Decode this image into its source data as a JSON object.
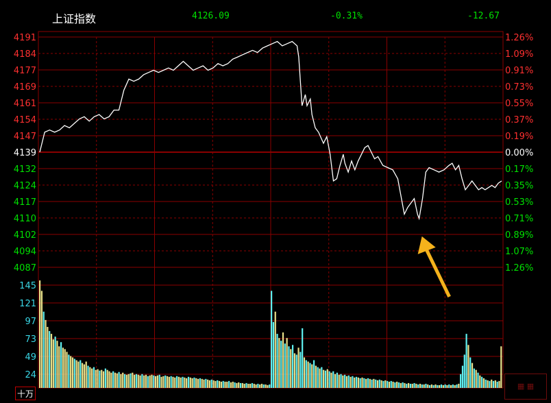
{
  "header": {
    "name": "上证指数",
    "price": "4126.09",
    "pct": "-0.31%",
    "change": "-12.67"
  },
  "volume_unit": "十万",
  "colors": {
    "up": "#ff3030",
    "down": "#00e000",
    "grid": "#8b0000",
    "line": "#ffffff",
    "vol_up": "#e8e08a",
    "vol_down": "#5ff0f0",
    "arrow": "#f5b21c"
  },
  "chart_data": {
    "type": "line",
    "title": "",
    "xlabel": "",
    "ylabel": "",
    "previous_close": 4139,
    "price_ticks": [
      4191,
      4184,
      4177,
      4169,
      4161,
      4154,
      4147,
      4139,
      4132,
      4124,
      4117,
      4110,
      4102,
      4094,
      4087
    ],
    "pct_ticks": [
      "1.26%",
      "1.09%",
      "0.91%",
      "0.73%",
      "0.55%",
      "0.37%",
      "0.19%",
      "0.00%",
      "0.17%",
      "0.35%",
      "0.53%",
      "0.71%",
      "0.89%",
      "1.07%",
      "1.26%"
    ],
    "volume_ticks": [
      145,
      121,
      97,
      73,
      49,
      24
    ],
    "ylim": [
      4087,
      4191
    ],
    "volume_ylim": [
      0,
      170
    ],
    "minutes": 240,
    "price_series": [
      [
        0,
        4139
      ],
      [
        3,
        4148
      ],
      [
        6,
        4149
      ],
      [
        9,
        4148
      ],
      [
        12,
        4149
      ],
      [
        15,
        4151
      ],
      [
        18,
        4150
      ],
      [
        21,
        4152
      ],
      [
        24,
        4154
      ],
      [
        27,
        4155
      ],
      [
        30,
        4153
      ],
      [
        33,
        4155
      ],
      [
        36,
        4156
      ],
      [
        39,
        4154
      ],
      [
        42,
        4155
      ],
      [
        45,
        4158
      ],
      [
        48,
        4158
      ],
      [
        51,
        4167
      ],
      [
        54,
        4172
      ],
      [
        57,
        4171
      ],
      [
        60,
        4172
      ],
      [
        63,
        4174
      ],
      [
        66,
        4175
      ],
      [
        69,
        4176
      ],
      [
        72,
        4175
      ],
      [
        75,
        4176
      ],
      [
        78,
        4177
      ],
      [
        81,
        4176
      ],
      [
        84,
        4178
      ],
      [
        87,
        4180
      ],
      [
        90,
        4178
      ],
      [
        93,
        4176
      ],
      [
        96,
        4177
      ],
      [
        99,
        4178
      ],
      [
        102,
        4176
      ],
      [
        105,
        4177
      ],
      [
        108,
        4179
      ],
      [
        111,
        4178
      ],
      [
        114,
        4179
      ],
      [
        117,
        4181
      ],
      [
        120,
        4182
      ],
      [
        123,
        4183
      ],
      [
        126,
        4184
      ],
      [
        129,
        4185
      ],
      [
        132,
        4184
      ],
      [
        135,
        4186
      ],
      [
        138,
        4187
      ],
      [
        141,
        4188
      ],
      [
        144,
        4189
      ],
      [
        147,
        4187
      ],
      [
        150,
        4188
      ],
      [
        153,
        4189
      ],
      [
        156,
        4187
      ],
      [
        157,
        4182
      ],
      [
        159,
        4160
      ],
      [
        161,
        4165
      ],
      [
        162,
        4160
      ],
      [
        164,
        4163
      ],
      [
        165,
        4156
      ],
      [
        167,
        4150
      ],
      [
        169,
        4148
      ],
      [
        172,
        4143
      ],
      [
        174,
        4146
      ],
      [
        176,
        4138
      ],
      [
        178,
        4126
      ],
      [
        180,
        4127
      ],
      [
        182,
        4133
      ],
      [
        184,
        4138
      ],
      [
        185,
        4134
      ],
      [
        187,
        4130
      ],
      [
        189,
        4135
      ],
      [
        191,
        4131
      ],
      [
        193,
        4135
      ],
      [
        195,
        4138
      ],
      [
        197,
        4141
      ],
      [
        199,
        4142
      ],
      [
        201,
        4139
      ],
      [
        203,
        4136
      ],
      [
        205,
        4137
      ],
      [
        208,
        4133
      ],
      [
        211,
        4132
      ],
      [
        214,
        4131
      ],
      [
        217,
        4127
      ],
      [
        219,
        4119
      ],
      [
        221,
        4111
      ],
      [
        223,
        4114
      ],
      [
        225,
        4116
      ],
      [
        227,
        4118
      ],
      [
        229,
        4111
      ],
      [
        230,
        4109
      ],
      [
        232,
        4118
      ],
      [
        234,
        4130
      ],
      [
        236,
        4132
      ],
      [
        239,
        4131
      ],
      [
        242,
        4130
      ],
      [
        245,
        4131
      ],
      [
        248,
        4133
      ],
      [
        250,
        4134
      ],
      [
        252,
        4131
      ],
      [
        254,
        4133
      ],
      [
        256,
        4127
      ],
      [
        258,
        4122
      ],
      [
        260,
        4124
      ],
      [
        262,
        4126
      ],
      [
        264,
        4124
      ],
      [
        266,
        4122
      ],
      [
        268,
        4123
      ],
      [
        270,
        4122
      ],
      [
        272,
        4123
      ],
      [
        274,
        4124
      ],
      [
        276,
        4123
      ],
      [
        278,
        4125
      ],
      [
        280,
        4126
      ]
    ],
    "volume_series": [
      [
        0,
        155,
        "up"
      ],
      [
        1,
        140,
        "up"
      ],
      [
        2,
        110,
        "down"
      ],
      [
        3,
        98,
        "up"
      ],
      [
        4,
        88,
        "up"
      ],
      [
        5,
        82,
        "down"
      ],
      [
        6,
        78,
        "up"
      ],
      [
        7,
        70,
        "up"
      ],
      [
        8,
        74,
        "down"
      ],
      [
        9,
        68,
        "up"
      ],
      [
        10,
        60,
        "up"
      ],
      [
        11,
        66,
        "down"
      ],
      [
        12,
        58,
        "up"
      ],
      [
        13,
        56,
        "up"
      ],
      [
        14,
        52,
        "up"
      ],
      [
        15,
        48,
        "down"
      ],
      [
        16,
        46,
        "up"
      ],
      [
        17,
        44,
        "up"
      ],
      [
        18,
        42,
        "down"
      ],
      [
        19,
        40,
        "up"
      ],
      [
        20,
        38,
        "up"
      ],
      [
        21,
        40,
        "down"
      ],
      [
        22,
        36,
        "up"
      ],
      [
        23,
        34,
        "up"
      ],
      [
        24,
        38,
        "up"
      ],
      [
        25,
        32,
        "down"
      ],
      [
        26,
        30,
        "up"
      ],
      [
        27,
        28,
        "up"
      ],
      [
        28,
        30,
        "down"
      ],
      [
        29,
        26,
        "up"
      ],
      [
        30,
        27,
        "up"
      ],
      [
        31,
        25,
        "down"
      ],
      [
        32,
        26,
        "up"
      ],
      [
        33,
        24,
        "up"
      ],
      [
        34,
        28,
        "down"
      ],
      [
        35,
        26,
        "up"
      ],
      [
        36,
        24,
        "up"
      ],
      [
        37,
        22,
        "up"
      ],
      [
        38,
        24,
        "down"
      ],
      [
        39,
        22,
        "up"
      ],
      [
        40,
        21,
        "up"
      ],
      [
        41,
        23,
        "down"
      ],
      [
        42,
        20,
        "up"
      ],
      [
        43,
        22,
        "up"
      ],
      [
        44,
        20,
        "down"
      ],
      [
        45,
        19,
        "up"
      ],
      [
        46,
        20,
        "up"
      ],
      [
        47,
        21,
        "down"
      ],
      [
        48,
        22,
        "up"
      ],
      [
        49,
        19,
        "up"
      ],
      [
        50,
        20,
        "down"
      ],
      [
        51,
        19,
        "up"
      ],
      [
        52,
        18,
        "up"
      ],
      [
        53,
        20,
        "down"
      ],
      [
        54,
        18,
        "up"
      ],
      [
        55,
        19,
        "up"
      ],
      [
        56,
        17,
        "down"
      ],
      [
        57,
        18,
        "up"
      ],
      [
        58,
        19,
        "up"
      ],
      [
        59,
        18,
        "down"
      ],
      [
        60,
        17,
        "up"
      ],
      [
        61,
        18,
        "up"
      ],
      [
        62,
        19,
        "down"
      ],
      [
        63,
        16,
        "up"
      ],
      [
        64,
        17,
        "up"
      ],
      [
        65,
        18,
        "down"
      ],
      [
        66,
        17,
        "up"
      ],
      [
        67,
        16,
        "up"
      ],
      [
        68,
        17,
        "down"
      ],
      [
        69,
        16,
        "up"
      ],
      [
        70,
        15,
        "up"
      ],
      [
        71,
        17,
        "down"
      ],
      [
        72,
        16,
        "up"
      ],
      [
        73,
        15,
        "up"
      ],
      [
        74,
        16,
        "down"
      ],
      [
        75,
        15,
        "up"
      ],
      [
        76,
        14,
        "up"
      ],
      [
        77,
        16,
        "down"
      ],
      [
        78,
        15,
        "up"
      ],
      [
        79,
        14,
        "up"
      ],
      [
        80,
        15,
        "down"
      ],
      [
        81,
        14,
        "up"
      ],
      [
        82,
        13,
        "up"
      ],
      [
        83,
        14,
        "down"
      ],
      [
        84,
        13,
        "up"
      ],
      [
        85,
        12,
        "up"
      ],
      [
        86,
        13,
        "down"
      ],
      [
        87,
        12,
        "up"
      ],
      [
        88,
        11,
        "up"
      ],
      [
        89,
        12,
        "down"
      ],
      [
        90,
        11,
        "up"
      ],
      [
        91,
        10,
        "up"
      ],
      [
        92,
        11,
        "down"
      ],
      [
        93,
        10,
        "up"
      ],
      [
        94,
        9,
        "up"
      ],
      [
        95,
        10,
        "down"
      ],
      [
        96,
        9,
        "up"
      ],
      [
        97,
        9,
        "up"
      ],
      [
        98,
        10,
        "down"
      ],
      [
        99,
        8,
        "up"
      ],
      [
        100,
        9,
        "up"
      ],
      [
        101,
        8,
        "down"
      ],
      [
        102,
        7,
        "up"
      ],
      [
        103,
        8,
        "up"
      ],
      [
        104,
        7,
        "down"
      ],
      [
        105,
        7,
        "up"
      ],
      [
        106,
        6,
        "up"
      ],
      [
        107,
        7,
        "down"
      ],
      [
        108,
        6,
        "up"
      ],
      [
        109,
        6,
        "up"
      ],
      [
        110,
        7,
        "down"
      ],
      [
        111,
        6,
        "up"
      ],
      [
        112,
        5,
        "up"
      ],
      [
        113,
        6,
        "down"
      ],
      [
        114,
        5,
        "up"
      ],
      [
        115,
        6,
        "up"
      ],
      [
        116,
        5,
        "down"
      ],
      [
        117,
        5,
        "up"
      ],
      [
        118,
        4,
        "up"
      ],
      [
        119,
        5,
        "down"
      ],
      [
        120,
        140,
        "down"
      ],
      [
        121,
        95,
        "down"
      ],
      [
        122,
        110,
        "up"
      ],
      [
        123,
        78,
        "down"
      ],
      [
        124,
        72,
        "up"
      ],
      [
        125,
        68,
        "down"
      ],
      [
        126,
        80,
        "up"
      ],
      [
        127,
        64,
        "down"
      ],
      [
        128,
        72,
        "up"
      ],
      [
        129,
        60,
        "down"
      ],
      [
        130,
        56,
        "up"
      ],
      [
        131,
        62,
        "down"
      ],
      [
        132,
        50,
        "up"
      ],
      [
        133,
        48,
        "down"
      ],
      [
        134,
        58,
        "up"
      ],
      [
        135,
        52,
        "down"
      ],
      [
        136,
        86,
        "down"
      ],
      [
        137,
        44,
        "up"
      ],
      [
        138,
        40,
        "down"
      ],
      [
        139,
        38,
        "up"
      ],
      [
        140,
        36,
        "down"
      ],
      [
        141,
        34,
        "up"
      ],
      [
        142,
        40,
        "down"
      ],
      [
        143,
        32,
        "up"
      ],
      [
        144,
        30,
        "down"
      ],
      [
        145,
        28,
        "up"
      ],
      [
        146,
        30,
        "down"
      ],
      [
        147,
        26,
        "up"
      ],
      [
        148,
        25,
        "down"
      ],
      [
        149,
        27,
        "up"
      ],
      [
        150,
        24,
        "down"
      ],
      [
        151,
        22,
        "up"
      ],
      [
        152,
        24,
        "down"
      ],
      [
        153,
        20,
        "up"
      ],
      [
        154,
        22,
        "down"
      ],
      [
        155,
        19,
        "up"
      ],
      [
        156,
        20,
        "down"
      ],
      [
        157,
        18,
        "up"
      ],
      [
        158,
        19,
        "down"
      ],
      [
        159,
        17,
        "up"
      ],
      [
        160,
        18,
        "down"
      ],
      [
        161,
        16,
        "up"
      ],
      [
        162,
        17,
        "down"
      ],
      [
        163,
        15,
        "up"
      ],
      [
        164,
        16,
        "down"
      ],
      [
        165,
        15,
        "up"
      ],
      [
        166,
        14,
        "down"
      ],
      [
        167,
        15,
        "up"
      ],
      [
        168,
        14,
        "down"
      ],
      [
        169,
        13,
        "up"
      ],
      [
        170,
        14,
        "down"
      ],
      [
        171,
        13,
        "up"
      ],
      [
        172,
        12,
        "down"
      ],
      [
        173,
        13,
        "up"
      ],
      [
        174,
        12,
        "down"
      ],
      [
        175,
        11,
        "up"
      ],
      [
        176,
        12,
        "down"
      ],
      [
        177,
        11,
        "up"
      ],
      [
        178,
        10,
        "down"
      ],
      [
        179,
        11,
        "up"
      ],
      [
        180,
        10,
        "down"
      ],
      [
        181,
        9,
        "up"
      ],
      [
        182,
        10,
        "down"
      ],
      [
        183,
        9,
        "up"
      ],
      [
        184,
        8,
        "down"
      ],
      [
        185,
        9,
        "up"
      ],
      [
        186,
        8,
        "down"
      ],
      [
        187,
        7,
        "up"
      ],
      [
        188,
        8,
        "down"
      ],
      [
        189,
        7,
        "up"
      ],
      [
        190,
        6,
        "down"
      ],
      [
        191,
        7,
        "up"
      ],
      [
        192,
        6,
        "down"
      ],
      [
        193,
        6,
        "up"
      ],
      [
        194,
        7,
        "down"
      ],
      [
        195,
        6,
        "up"
      ],
      [
        196,
        5,
        "down"
      ],
      [
        197,
        6,
        "up"
      ],
      [
        198,
        5,
        "down"
      ],
      [
        199,
        5,
        "up"
      ],
      [
        200,
        6,
        "down"
      ],
      [
        201,
        5,
        "up"
      ],
      [
        202,
        4,
        "down"
      ],
      [
        203,
        5,
        "up"
      ],
      [
        204,
        4,
        "down"
      ],
      [
        205,
        5,
        "up"
      ],
      [
        206,
        4,
        "down"
      ],
      [
        207,
        4,
        "up"
      ],
      [
        208,
        5,
        "down"
      ],
      [
        209,
        4,
        "up"
      ],
      [
        210,
        5,
        "down"
      ],
      [
        211,
        4,
        "up"
      ],
      [
        212,
        5,
        "down"
      ],
      [
        213,
        4,
        "up"
      ],
      [
        214,
        5,
        "down"
      ],
      [
        215,
        4,
        "up"
      ],
      [
        216,
        5,
        "down"
      ],
      [
        217,
        6,
        "up"
      ],
      [
        218,
        20,
        "down"
      ],
      [
        219,
        32,
        "down"
      ],
      [
        220,
        48,
        "down"
      ],
      [
        221,
        78,
        "down"
      ],
      [
        222,
        62,
        "up"
      ],
      [
        223,
        44,
        "down"
      ],
      [
        224,
        36,
        "up"
      ],
      [
        225,
        28,
        "down"
      ],
      [
        226,
        26,
        "up"
      ],
      [
        227,
        22,
        "down"
      ],
      [
        228,
        18,
        "up"
      ],
      [
        229,
        16,
        "down"
      ],
      [
        230,
        14,
        "up"
      ],
      [
        231,
        12,
        "down"
      ],
      [
        232,
        11,
        "up"
      ],
      [
        233,
        10,
        "down"
      ],
      [
        234,
        12,
        "up"
      ],
      [
        235,
        10,
        "down"
      ],
      [
        236,
        11,
        "up"
      ],
      [
        237,
        9,
        "down"
      ],
      [
        238,
        10,
        "up"
      ],
      [
        239,
        60,
        "up"
      ]
    ]
  }
}
